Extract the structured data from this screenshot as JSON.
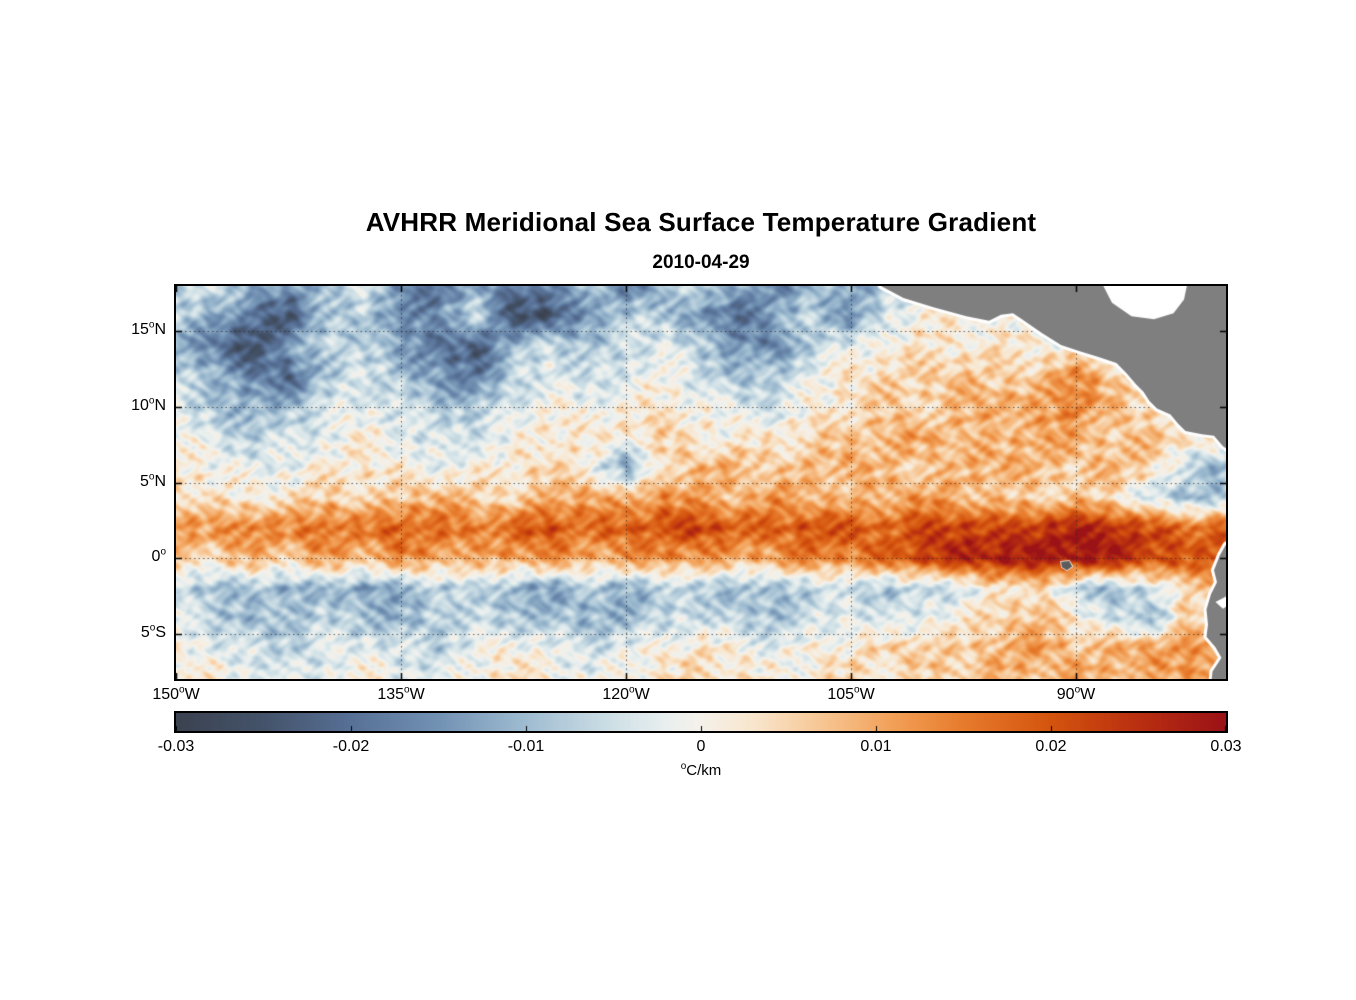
{
  "chart_data": {
    "type": "heatmap",
    "title": "AVHRR Meridional Sea Surface Temperature Gradient",
    "subtitle": "2010-04-29",
    "lon_range": [
      -150,
      -80
    ],
    "lat_range": [
      -8,
      18
    ],
    "grid_on": true,
    "x_axis": {
      "ticks": [
        {
          "lon": -150,
          "label": "150°W"
        },
        {
          "lon": -135,
          "label": "135°W"
        },
        {
          "lon": -120,
          "label": "120°W"
        },
        {
          "lon": -105,
          "label": "105°W"
        },
        {
          "lon": -90,
          "label": "90°W"
        }
      ]
    },
    "y_axis": {
      "ticks": [
        {
          "lat": 15,
          "label": "15°N"
        },
        {
          "lat": 10,
          "label": "10°N"
        },
        {
          "lat": 5,
          "label": "5°N"
        },
        {
          "lat": 0,
          "label": "0°"
        },
        {
          "lat": -5,
          "label": "5°S"
        }
      ]
    },
    "gridlines": {
      "lons": [
        -135,
        -120,
        -105,
        -90
      ],
      "lats": [
        15,
        10,
        5,
        0,
        -5
      ]
    },
    "colorbar": {
      "min": -0.03,
      "max": 0.03,
      "ticks": [
        "-0.03",
        "-0.02",
        "-0.01",
        "0",
        "0.01",
        "0.02",
        "0.03"
      ],
      "label": "°C/km"
    },
    "colormap": [
      {
        "v": -0.03,
        "c": "#3b4250"
      },
      {
        "v": -0.025,
        "c": "#44536a"
      },
      {
        "v": -0.02,
        "c": "#577096"
      },
      {
        "v": -0.015,
        "c": "#7292b4"
      },
      {
        "v": -0.01,
        "c": "#9fbcd1"
      },
      {
        "v": -0.005,
        "c": "#cfe0e6"
      },
      {
        "v": -0.002,
        "c": "#e9efef"
      },
      {
        "v": 0.0,
        "c": "#f5f1ea"
      },
      {
        "v": 0.003,
        "c": "#f8e6cd"
      },
      {
        "v": 0.007,
        "c": "#f7c592"
      },
      {
        "v": 0.011,
        "c": "#f2a057"
      },
      {
        "v": 0.015,
        "c": "#e77b2c"
      },
      {
        "v": 0.02,
        "c": "#d4540e"
      },
      {
        "v": 0.025,
        "c": "#b92f10"
      },
      {
        "v": 0.03,
        "c": "#9b1217"
      }
    ],
    "land_color": "#7f7f7f",
    "coast_halo": "#ffffff",
    "grid": {
      "values_unit": "°C/km",
      "value_scale": 0.001,
      "lons": [
        -150,
        -147.5,
        -145,
        -142.5,
        -140,
        -137.5,
        -135,
        -132.5,
        -130,
        -127.5,
        -125,
        -122.5,
        -120,
        -117.5,
        -115,
        -112.5,
        -110,
        -107.5,
        -105,
        -102.5,
        -100,
        -97.5,
        -95,
        -92.5,
        -90,
        -87.5,
        -85,
        -82.5,
        -80
      ],
      "lats": [
        18,
        16,
        14,
        12,
        10,
        8,
        6,
        4,
        2,
        0,
        -2,
        -4,
        -6,
        -8
      ],
      "values": [
        [
          -8,
          -5,
          -10,
          -16,
          -8,
          -4,
          -14,
          -22,
          -10,
          -20,
          -16,
          -8,
          -18,
          -10,
          -5,
          -12,
          -18,
          -9,
          -14,
          -6,
          -2,
          0,
          0,
          0,
          0,
          0,
          0,
          0,
          0
        ],
        [
          -5,
          -12,
          -20,
          -24,
          -10,
          -6,
          -18,
          -14,
          -6,
          -24,
          -26,
          -12,
          -8,
          -6,
          -16,
          -20,
          -12,
          -6,
          -16,
          -4,
          2,
          1,
          0,
          0,
          0,
          0,
          0,
          0,
          0
        ],
        [
          -10,
          -18,
          -26,
          -14,
          -5,
          -8,
          -12,
          -20,
          -24,
          -10,
          -5,
          -10,
          -6,
          -3,
          -8,
          -14,
          -18,
          -6,
          -2,
          2,
          3,
          2,
          4,
          2,
          0,
          0,
          0,
          0,
          0
        ],
        [
          -6,
          -10,
          -16,
          -22,
          -8,
          -3,
          -8,
          -14,
          -18,
          -6,
          -2,
          -5,
          -3,
          1,
          -5,
          -10,
          -7,
          -2,
          3,
          4,
          5,
          7,
          4,
          6,
          14,
          6,
          2,
          0,
          0
        ],
        [
          -3,
          -8,
          -12,
          -9,
          -4,
          -2,
          -5,
          -8,
          -9,
          -4,
          1,
          -2,
          1,
          2,
          0,
          -3,
          -5,
          1,
          4,
          6,
          5,
          8,
          12,
          9,
          16,
          8,
          3,
          1,
          0
        ],
        [
          0,
          -4,
          -7,
          -5,
          -2,
          1,
          -2,
          -5,
          -4,
          -1,
          3,
          1,
          3,
          5,
          2,
          1,
          3,
          5,
          7,
          9,
          11,
          8,
          7,
          11,
          9,
          6,
          7,
          5,
          3
        ],
        [
          2,
          0,
          -3,
          -2,
          1,
          3,
          1,
          -2,
          1,
          3,
          5,
          2,
          -14,
          5,
          8,
          10,
          5,
          8,
          10,
          7,
          5,
          8,
          10,
          7,
          5,
          8,
          5,
          -8,
          -12
        ],
        [
          5,
          3,
          1,
          3,
          6,
          3,
          6,
          9,
          5,
          3,
          8,
          11,
          7,
          13,
          10,
          7,
          12,
          9,
          7,
          10,
          12,
          9,
          7,
          5,
          7,
          4,
          -5,
          -10,
          -7
        ],
        [
          13,
          11,
          16,
          13,
          18,
          15,
          20,
          17,
          15,
          19,
          21,
          17,
          19,
          21,
          23,
          19,
          17,
          21,
          19,
          17,
          21,
          23,
          20,
          24,
          27,
          25,
          21,
          17,
          19
        ],
        [
          7,
          5,
          9,
          7,
          11,
          9,
          13,
          11,
          9,
          11,
          13,
          9,
          11,
          13,
          11,
          9,
          11,
          15,
          13,
          18,
          23,
          26,
          29,
          28,
          30,
          28,
          23,
          19,
          21
        ],
        [
          -5,
          -10,
          -7,
          -12,
          -9,
          -14,
          -11,
          -8,
          -6,
          -12,
          -14,
          -9,
          -12,
          -9,
          -7,
          -12,
          -9,
          -7,
          -5,
          -9,
          -6,
          -4,
          3,
          5,
          -7,
          -9,
          -5,
          7,
          5
        ],
        [
          -3,
          -7,
          -11,
          -9,
          -6,
          -9,
          -11,
          -7,
          -4,
          -9,
          -7,
          -11,
          -9,
          -6,
          -4,
          -7,
          -9,
          -5,
          -2,
          -5,
          -2,
          1,
          5,
          7,
          2,
          -5,
          -12,
          8,
          -8
        ],
        [
          1,
          -2,
          -5,
          -7,
          -4,
          -2,
          -5,
          -7,
          -2,
          1,
          -2,
          -5,
          -2,
          1,
          3,
          1,
          -2,
          1,
          3,
          5,
          8,
          5,
          10,
          12,
          7,
          9,
          13,
          11,
          9
        ],
        [
          3,
          1,
          -2,
          -4,
          -2,
          1,
          -2,
          -4,
          1,
          3,
          1,
          -2,
          1,
          3,
          5,
          3,
          1,
          3,
          5,
          3,
          5,
          7,
          9,
          7,
          11,
          9,
          7,
          13,
          11
        ]
      ]
    },
    "land_polygons": {
      "land": [
        [
          [
            -103,
            19
          ],
          [
            -103,
            18
          ],
          [
            -101.5,
            17.2
          ],
          [
            -99.5,
            16.6
          ],
          [
            -97.3,
            16.0
          ],
          [
            -95.8,
            15.7
          ],
          [
            -95.0,
            16.1
          ],
          [
            -94.2,
            16.2
          ],
          [
            -93.6,
            15.8
          ],
          [
            -92.3,
            14.9
          ],
          [
            -91.0,
            14.1
          ],
          [
            -89.8,
            13.7
          ],
          [
            -88.5,
            13.3
          ],
          [
            -87.3,
            12.9
          ],
          [
            -86.6,
            12.2
          ],
          [
            -86.0,
            11.5
          ],
          [
            -85.5,
            11.0
          ],
          [
            -85.1,
            10.4
          ],
          [
            -84.6,
            9.9
          ],
          [
            -83.7,
            9.5
          ],
          [
            -83.2,
            8.9
          ],
          [
            -82.7,
            8.4
          ],
          [
            -81.6,
            8.2
          ],
          [
            -80.8,
            8.1
          ],
          [
            -80.2,
            7.4
          ],
          [
            -79.6,
            7.0
          ],
          [
            -78,
            6.8
          ],
          [
            -78,
            19
          ]
        ],
        [
          [
            -80,
            0.9
          ],
          [
            -80.4,
            0.2
          ],
          [
            -80.8,
            -0.8
          ],
          [
            -80.6,
            -1.6
          ],
          [
            -81.0,
            -2.4
          ],
          [
            -81.3,
            -3.4
          ],
          [
            -81.2,
            -4.4
          ],
          [
            -81.3,
            -5.2
          ],
          [
            -80.7,
            -5.9
          ],
          [
            -80.3,
            -6.6
          ],
          [
            -80.9,
            -7.5
          ],
          [
            -81.0,
            -8.5
          ],
          [
            -78,
            -8.5
          ],
          [
            -78,
            0.5
          ]
        ]
      ],
      "water": [
        [
          [
            -88.7,
            19
          ],
          [
            -87.6,
            16.9
          ],
          [
            -86.3,
            16.0
          ],
          [
            -84.8,
            15.8
          ],
          [
            -83.5,
            16.2
          ],
          [
            -82.8,
            17.1
          ],
          [
            -82.4,
            19
          ]
        ],
        [
          [
            -79.9,
            -2.5
          ],
          [
            -80.7,
            -2.9
          ],
          [
            -80.2,
            -3.35
          ],
          [
            -79.8,
            -3.1
          ]
        ]
      ],
      "islands": [
        [
          [
            -91.0,
            -0.25
          ],
          [
            -90.45,
            -0.2
          ],
          [
            -90.25,
            -0.55
          ],
          [
            -90.6,
            -0.8
          ],
          [
            -90.95,
            -0.6
          ]
        ]
      ]
    }
  }
}
